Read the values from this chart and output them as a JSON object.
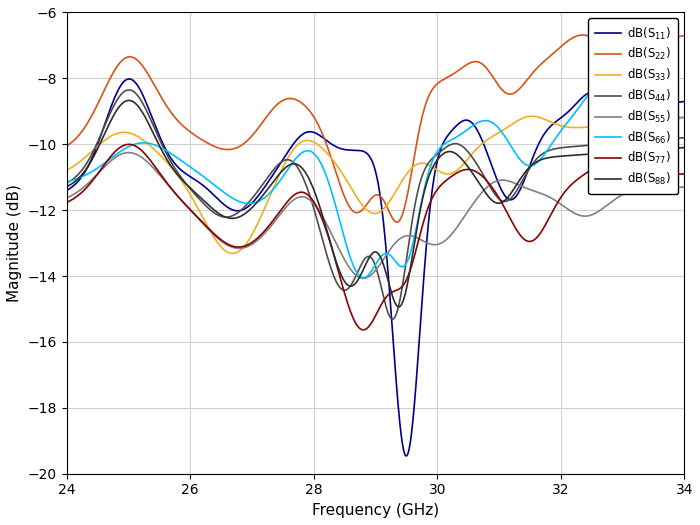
{
  "xlabel": "Frequency (GHz)",
  "ylabel": "Magnitude (dB)",
  "xlim": [
    24,
    34
  ],
  "ylim": [
    -20,
    -6
  ],
  "yticks": [
    -20,
    -18,
    -16,
    -14,
    -12,
    -10,
    -8,
    -6
  ],
  "xticks": [
    24,
    26,
    28,
    30,
    32,
    34
  ],
  "legend_labels": [
    "dB(S$_{11}$)",
    "dB(S$_{22}$)",
    "dB(S$_{33}$)",
    "dB(S$_{44}$)",
    "dB(S$_{55}$)",
    "dB(S$_{66}$)",
    "dB(S$_{77}$)",
    "dB(S$_{88}$)"
  ],
  "colors": [
    "#00008B",
    "#D95319",
    "#EDB120",
    "#4d4d4d",
    "#808080",
    "#00BFFF",
    "#8B0000",
    "#2d2d2d"
  ],
  "linewidths": [
    1.2,
    1.2,
    1.2,
    1.2,
    1.2,
    1.2,
    1.2,
    1.2
  ],
  "grid_color": "#D0D0D0",
  "background_color": "#FFFFFF",
  "legend_fontsize": 8.5,
  "axis_fontsize": 11,
  "tick_fontsize": 10
}
